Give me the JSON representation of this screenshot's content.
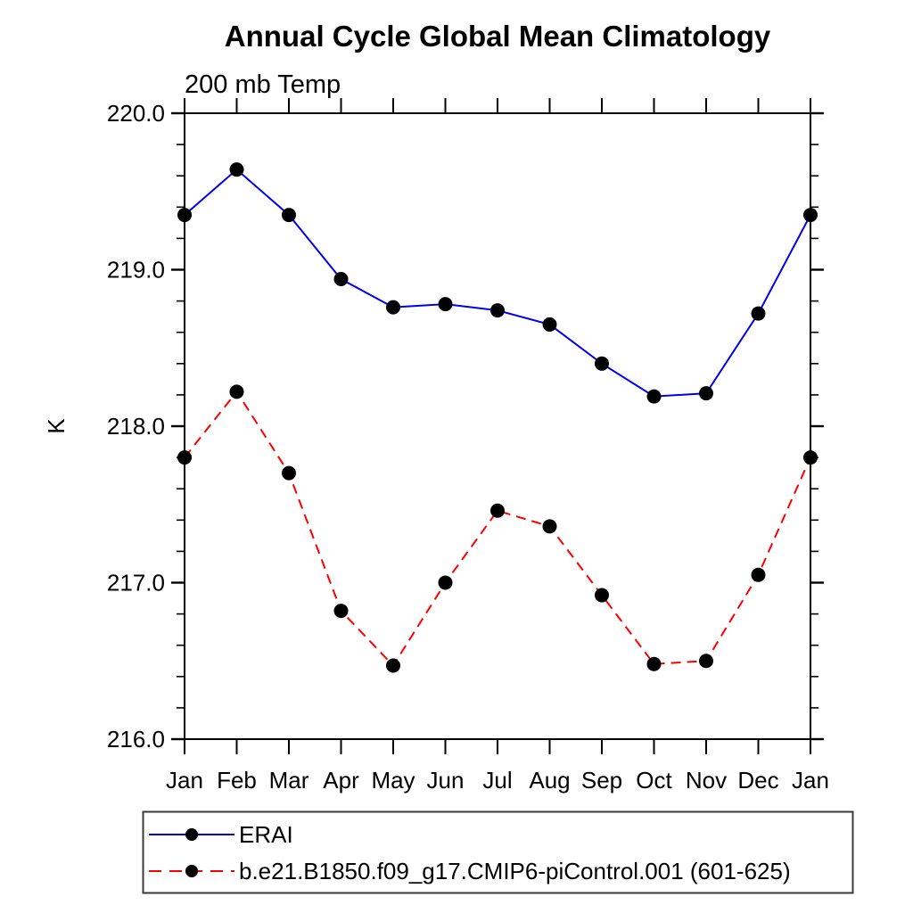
{
  "chart_data": {
    "type": "line",
    "title": "Annual Cycle Global Mean Climatology",
    "subtitle": "200 mb Temp",
    "ylabel": "K",
    "xlabel": "",
    "categories": [
      "Jan",
      "Feb",
      "Mar",
      "Apr",
      "May",
      "Jun",
      "Jul",
      "Aug",
      "Sep",
      "Oct",
      "Nov",
      "Dec",
      "Jan"
    ],
    "ylim": [
      216.0,
      220.0
    ],
    "ytick_major": [
      216.0,
      217.0,
      218.0,
      219.0,
      220.0
    ],
    "ytick_labels": [
      "216.0",
      "217.0",
      "218.0",
      "219.0",
      "220.0"
    ],
    "ytick_minor_step": 0.2,
    "grid": false,
    "legend_position": "below-left",
    "series": [
      {
        "name": "ERAI",
        "line_color": "#0000ee",
        "line_style": "solid",
        "marker": "filled-circle",
        "marker_color": "#000000",
        "values": [
          219.35,
          219.64,
          219.35,
          218.94,
          218.76,
          218.78,
          218.74,
          218.65,
          218.4,
          218.19,
          218.21,
          218.72,
          219.35
        ]
      },
      {
        "name": "b.e21.B1850.f09_g17.CMIP6-piControl.001 (601-625)",
        "line_color": "#fb0000",
        "line_style": "dashed",
        "marker": "filled-circle",
        "marker_color": "#000000",
        "values": [
          217.8,
          218.22,
          217.7,
          216.82,
          216.47,
          217.0,
          217.46,
          217.36,
          216.92,
          216.48,
          216.5,
          217.05,
          217.8
        ]
      }
    ]
  },
  "colors": {
    "background": "#ffffff",
    "axis": "#000000",
    "text": "#000000",
    "legend_border": "#3a3a3a",
    "erai_blue": "#0000ee",
    "model_red": "#fb0000"
  }
}
